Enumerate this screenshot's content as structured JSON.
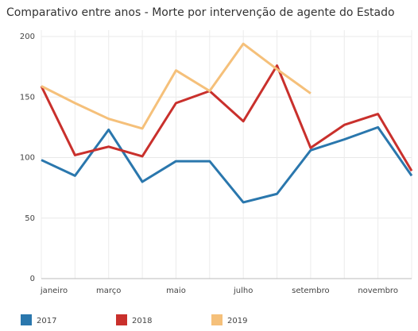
{
  "chart_data": {
    "type": "line",
    "title": "Comparativo entre anos - Morte por intervenção de agente do Estado",
    "categories": [
      "janeiro",
      null,
      "março",
      null,
      "maio",
      null,
      "julho",
      null,
      "setembro",
      null,
      "novembro",
      null
    ],
    "series": [
      {
        "name": "2017",
        "color": "#2a77ad",
        "values": [
          98,
          85,
          123,
          80,
          97,
          97,
          63,
          70,
          106,
          115,
          125,
          85
        ]
      },
      {
        "name": "2018",
        "color": "#c9302c",
        "values": [
          159,
          102,
          109,
          101,
          145,
          155,
          130,
          176,
          108,
          127,
          136,
          89
        ]
      },
      {
        "name": "2019",
        "color": "#f5c07a",
        "values": [
          159,
          145,
          132,
          124,
          172,
          155,
          194,
          173,
          153,
          null,
          null,
          null
        ]
      }
    ],
    "ylim": [
      0,
      200
    ],
    "yticks": [
      0,
      50,
      100,
      150,
      200
    ],
    "grid": true,
    "legend": "bottom"
  }
}
